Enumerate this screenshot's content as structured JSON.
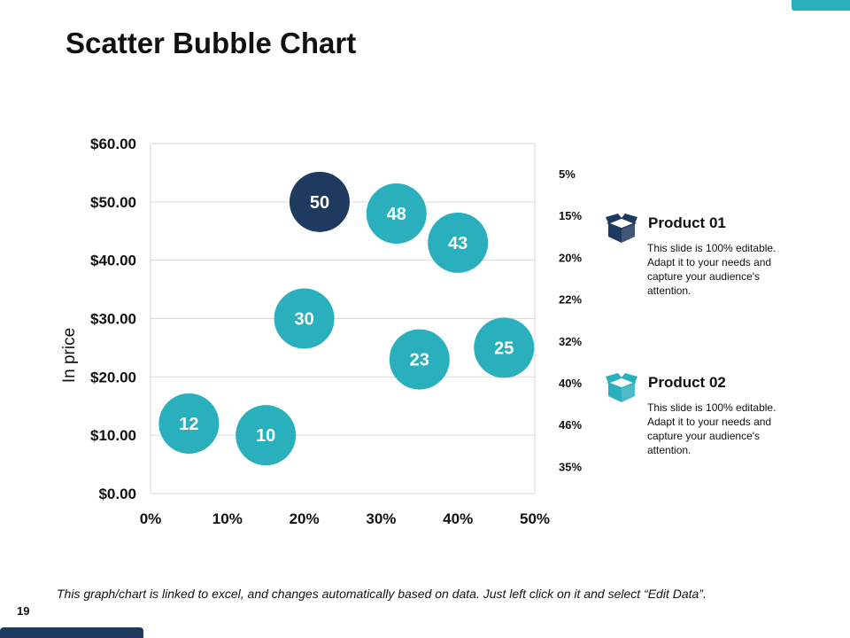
{
  "slide": {
    "title": "Scatter Bubble Chart",
    "footnote": "This graph/chart is linked to excel, and changes automatically based on data. Just left click on it and select “Edit Data”.",
    "page_number": "19"
  },
  "colors": {
    "teal": "#2aafbd",
    "navy": "#1e3a5f",
    "grid": "#d9d9d9"
  },
  "chart_data": {
    "type": "scatter",
    "title": "",
    "xlabel": "",
    "ylabel": "In price",
    "xlim": [
      0,
      50
    ],
    "ylim": [
      0,
      60
    ],
    "x_ticks": [
      "0%",
      "10%",
      "20%",
      "30%",
      "40%",
      "50%"
    ],
    "y_ticks": [
      "$0.00",
      "$10.00",
      "$20.00",
      "$30.00",
      "$40.00",
      "$50.00",
      "$60.00"
    ],
    "grid": "horizontal",
    "series": [
      {
        "name": "Bubbles",
        "points": [
          {
            "x": 5,
            "y": 12,
            "label": "12",
            "color": "#2aafbd"
          },
          {
            "x": 15,
            "y": 10,
            "label": "10",
            "color": "#2aafbd"
          },
          {
            "x": 20,
            "y": 30,
            "label": "30",
            "color": "#2aafbd"
          },
          {
            "x": 22,
            "y": 50,
            "label": "50",
            "color": "#1e3a5f"
          },
          {
            "x": 32,
            "y": 48,
            "label": "48",
            "color": "#2aafbd"
          },
          {
            "x": 35,
            "y": 23,
            "label": "23",
            "color": "#2aafbd"
          },
          {
            "x": 40,
            "y": 43,
            "label": "43",
            "color": "#2aafbd"
          },
          {
            "x": 46,
            "y": 25,
            "label": "25",
            "color": "#2aafbd"
          }
        ]
      }
    ],
    "percent_labels": [
      "5%",
      "15%",
      "20%",
      "22%",
      "32%",
      "40%",
      "46%",
      "35%"
    ]
  },
  "products": [
    {
      "name": "Product 01",
      "desc": "This slide is 100% editable. Adapt it to your needs and capture your audience's attention.",
      "icon": "box-icon",
      "color": "#1e3a5f"
    },
    {
      "name": "Product 02",
      "desc": "This slide is 100% editable. Adapt it to your needs and capture your audience's attention.",
      "icon": "box-icon",
      "color": "#2aafbd"
    }
  ]
}
